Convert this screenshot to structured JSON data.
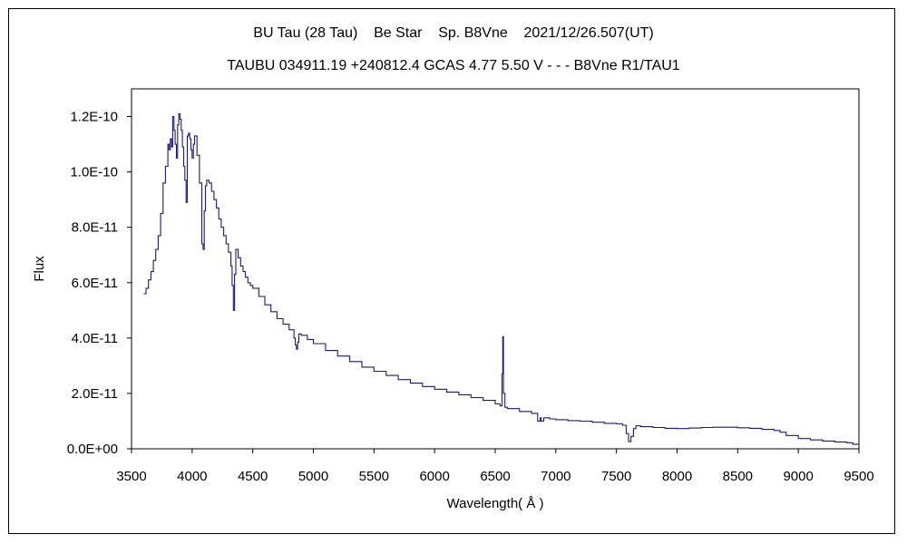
{
  "chart_data": {
    "type": "line",
    "title": "BU Tau (28 Tau)    Be Star    Sp. B8Vne    2021/12/26.507(UT)",
    "subtitle": "TAUBU 034911.19 +240812.4 GCAS 4.77 5.50 V - - - B8Vne R1/TAU1",
    "xlabel": "Wavelength( Å )",
    "ylabel": "Flux",
    "xlim": [
      3500,
      9500
    ],
    "ylim": [
      0,
      1.3e-10
    ],
    "x_ticks": [
      3500,
      4000,
      4500,
      5000,
      5500,
      6000,
      6500,
      7000,
      7500,
      8000,
      8500,
      9000,
      9500
    ],
    "x_tick_labels": [
      "3500",
      "4000",
      "4500",
      "5000",
      "5500",
      "6000",
      "6500",
      "7000",
      "7500",
      "8000",
      "8500",
      "9000",
      "9500"
    ],
    "y_ticks": [
      0,
      2e-11,
      4e-11,
      6e-11,
      8e-11,
      1e-10,
      1.2e-10
    ],
    "y_tick_labels": [
      "0.0E+00",
      "2.0E-11",
      "4.0E-11",
      "6.0E-11",
      "8.0E-11",
      "1.0E-10",
      "1.2E-10"
    ],
    "grid": false,
    "legend": false,
    "line_color": "#1a1a7a",
    "series": [
      {
        "x": [
          3600,
          3620,
          3640,
          3660,
          3680,
          3700,
          3720,
          3740,
          3760,
          3780,
          3800,
          3810,
          3820,
          3830,
          3840,
          3850,
          3860,
          3870,
          3880,
          3890,
          3900,
          3910,
          3920,
          3930,
          3940,
          3950,
          3960,
          3970,
          3980,
          3990,
          4000,
          4010,
          4020,
          4040,
          4060,
          4080,
          4090,
          4100,
          4110,
          4120,
          4140,
          4160,
          4180,
          4200,
          4220,
          4240,
          4260,
          4280,
          4300,
          4320,
          4330,
          4340,
          4350,
          4360,
          4380,
          4400,
          4420,
          4440,
          4460,
          4480,
          4500,
          4550,
          4600,
          4650,
          4700,
          4750,
          4800,
          4840,
          4850,
          4860,
          4870,
          4880,
          4900,
          4950,
          5000,
          5100,
          5200,
          5300,
          5400,
          5500,
          5600,
          5700,
          5800,
          5900,
          6000,
          6100,
          6200,
          6300,
          6400,
          6500,
          6540,
          6556,
          6562,
          6568,
          6580,
          6600,
          6700,
          6800,
          6850,
          6870,
          6880,
          6900,
          6950,
          7000,
          7100,
          7200,
          7300,
          7400,
          7500,
          7550,
          7580,
          7600,
          7620,
          7640,
          7660,
          7700,
          7800,
          7900,
          8000,
          8100,
          8200,
          8300,
          8400,
          8500,
          8600,
          8700,
          8800,
          8850,
          8900,
          9000,
          9100,
          9200,
          9300,
          9400,
          9450,
          9500
        ],
        "y": [
          5.6e-11,
          5.8e-11,
          6.1e-11,
          6.4e-11,
          6.8e-11,
          7.2e-11,
          7.7e-11,
          8.5e-11,
          9.6e-11,
          1.02e-10,
          1.1e-10,
          1.08e-10,
          1.12e-10,
          1.09e-10,
          1.2e-10,
          1.15e-10,
          1.1e-10,
          1.05e-10,
          1.17e-10,
          1.21e-10,
          1.19e-10,
          1.15e-10,
          1.09e-10,
          1.02e-10,
          9.7e-11,
          8.9e-11,
          1.13e-10,
          1.14e-10,
          1.12e-10,
          1.08e-10,
          1.05e-10,
          1.1e-10,
          1.13e-10,
          1.06e-10,
          9.6e-11,
          7.4e-11,
          7.2e-11,
          8.6e-11,
          9.5e-11,
          9.7e-11,
          9.6e-11,
          9.3e-11,
          9e-11,
          8.7e-11,
          8.3e-11,
          8e-11,
          7.7e-11,
          7.4e-11,
          7.1e-11,
          6.6e-11,
          5.9e-11,
          5e-11,
          6.3e-11,
          7.2e-11,
          6.9e-11,
          6.6e-11,
          6.4e-11,
          6.2e-11,
          6e-11,
          5.9e-11,
          5.8e-11,
          5.5e-11,
          5.2e-11,
          4.95e-11,
          4.7e-11,
          4.5e-11,
          4.3e-11,
          4e-11,
          3.75e-11,
          3.6e-11,
          3.85e-11,
          4.15e-11,
          4.1e-11,
          3.95e-11,
          3.8e-11,
          3.55e-11,
          3.35e-11,
          3.15e-11,
          2.95e-11,
          2.8e-11,
          2.65e-11,
          2.5e-11,
          2.37e-11,
          2.25e-11,
          2.15e-11,
          2.05e-11,
          1.95e-11,
          1.85e-11,
          1.75e-11,
          1.62e-11,
          1.55e-11,
          2.7e-11,
          4.05e-11,
          2e-11,
          1.5e-11,
          1.45e-11,
          1.35e-11,
          1.28e-11,
          1e-11,
          1.12e-11,
          1e-11,
          1.12e-11,
          1.08e-11,
          1.05e-11,
          1.02e-11,
          1e-11,
          9.6e-12,
          9.2e-12,
          9e-12,
          8.5e-12,
          5.5e-12,
          2.6e-12,
          4.5e-12,
          7.3e-12,
          8.3e-12,
          8e-12,
          7.7e-12,
          7.4e-12,
          7.3e-12,
          7.5e-12,
          7.7e-12,
          7.8e-12,
          7.8e-12,
          7.6e-12,
          7.4e-12,
          7e-12,
          6.6e-12,
          6e-12,
          4.8e-12,
          3.7e-12,
          3.2e-12,
          2.8e-12,
          2.5e-12,
          2.2e-12,
          1.6e-12,
          1e-12
        ]
      }
    ]
  }
}
